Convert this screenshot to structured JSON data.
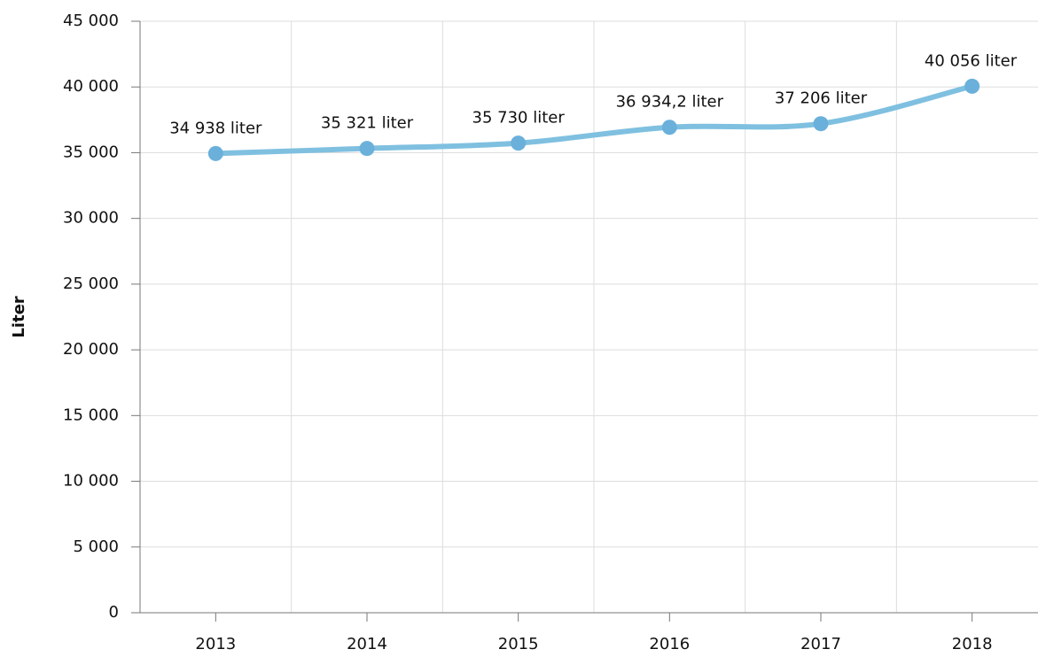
{
  "chart_data": {
    "type": "line",
    "y_label": "Liter",
    "categories": [
      "2013",
      "2014",
      "2015",
      "2016",
      "2017",
      "2018"
    ],
    "series": [
      {
        "color": "#7fc0e0",
        "marker_color": "#6ab0db",
        "values": [
          34938,
          35321,
          35730,
          36934.2,
          37206,
          40056
        ],
        "value_labels": [
          "34 938 liter",
          "35 321 liter",
          "35 730 liter",
          "36 934,2 liter",
          "37 206 liter",
          "40 056 liter"
        ]
      }
    ],
    "ylim": [
      0,
      45000
    ],
    "yticks": [
      0,
      {
        "value": 5000,
        "label": "5 000"
      },
      {
        "value": 10000,
        "label": "10 000"
      },
      {
        "value": 15000,
        "label": "15 000"
      },
      {
        "value": 20000,
        "label": "20 000"
      },
      {
        "value": 25000,
        "label": "25 000"
      },
      {
        "value": 30000,
        "label": "30 000"
      },
      {
        "value": 35000,
        "label": "35 000"
      },
      {
        "value": 40000,
        "label": "40 000"
      },
      {
        "value": 45000,
        "label": "45 000"
      }
    ],
    "grid": true
  }
}
